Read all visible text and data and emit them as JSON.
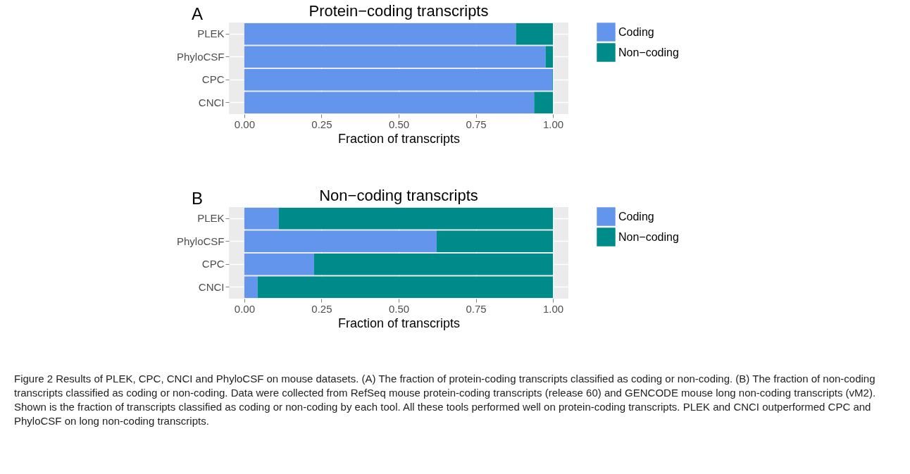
{
  "chart_data": [
    {
      "type": "bar",
      "orientation": "horizontal",
      "stacked": true,
      "title": "Protein−coding transcripts",
      "xlabel": "Fraction of transcripts",
      "categories": [
        "PLEK",
        "PhyloCSF",
        "CPC",
        "CNCI"
      ],
      "series": [
        {
          "name": "Coding",
          "color": "#6495ed",
          "values": [
            0.88,
            0.976,
            0.998,
            0.939
          ]
        },
        {
          "name": "Non−coding",
          "color": "#008b8b",
          "values": [
            0.12,
            0.024,
            0.002,
            0.061
          ]
        }
      ],
      "xlim": [
        -0.05,
        1.05
      ],
      "xticks": [
        {
          "value": 0,
          "label": "0.00"
        },
        {
          "value": 0.25,
          "label": "0.25"
        },
        {
          "value": 0.5,
          "label": "0.50"
        },
        {
          "value": 0.75,
          "label": "0.75"
        },
        {
          "value": 1,
          "label": "1.00"
        }
      ],
      "grid": true,
      "legend": "right",
      "annotations": [
        "A"
      ]
    },
    {
      "type": "bar",
      "orientation": "horizontal",
      "stacked": true,
      "title": "Non−coding transcripts",
      "xlabel": "Fraction of transcripts",
      "categories": [
        "PLEK",
        "PhyloCSF",
        "CPC",
        "CNCI"
      ],
      "series": [
        {
          "name": "Coding",
          "color": "#6495ed",
          "values": [
            0.111,
            0.623,
            0.226,
            0.043
          ]
        },
        {
          "name": "Non−coding",
          "color": "#008b8b",
          "values": [
            0.889,
            0.377,
            0.774,
            0.957
          ]
        }
      ],
      "xlim": [
        -0.05,
        1.05
      ],
      "xticks": [
        {
          "value": 0,
          "label": "0.00"
        },
        {
          "value": 0.25,
          "label": "0.25"
        },
        {
          "value": 0.5,
          "label": "0.50"
        },
        {
          "value": 0.75,
          "label": "0.75"
        },
        {
          "value": 1,
          "label": "1.00"
        }
      ],
      "grid": true,
      "legend": "right",
      "annotations": [
        "B",
        "Figure 2 Results of PLEK, CPC, CNCI and PhyloCSF on mouse datasets. (A) The fraction of protein-coding transcripts classified as coding or non-coding. (B) The fraction of non-coding transcripts classified as coding or non-coding. Data were collected from RefSeq mouse protein-coding transcripts (release 60) and GENCODE mouse long non-coding transcripts (vM2). Shown is the fraction of transcripts classified as coding or non-coding by each tool. All these tools performed well on protein-coding transcripts. PLEK and CNCI outperformed CPC and PhyloCSF on long non-coding transcripts."
      ]
    }
  ]
}
